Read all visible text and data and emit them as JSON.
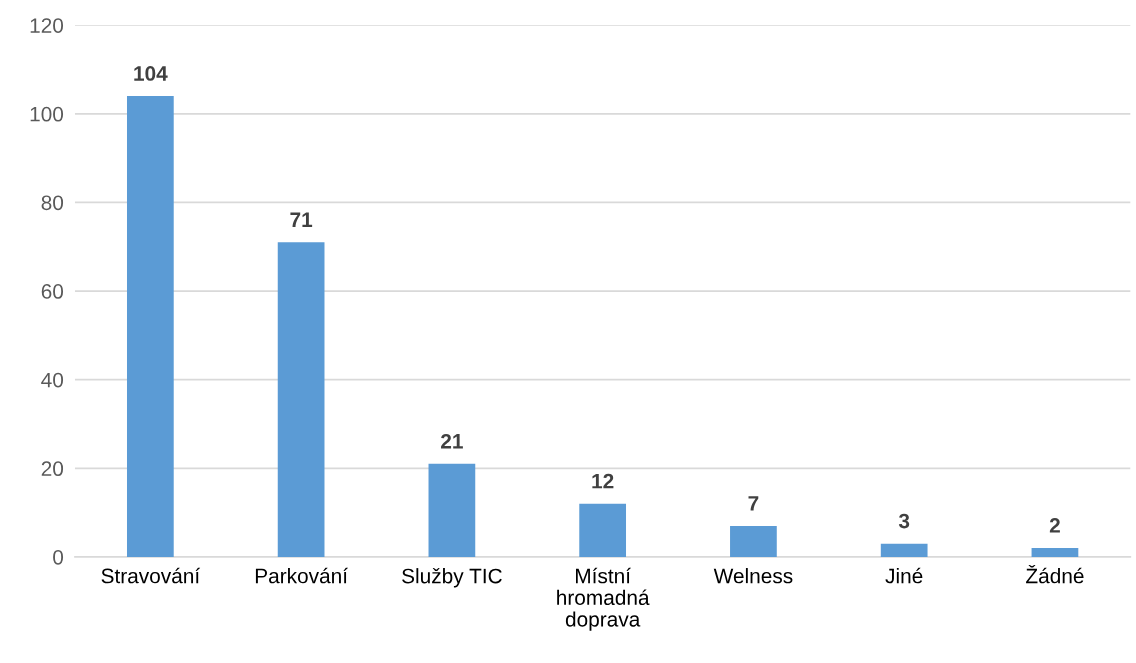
{
  "chart_data": {
    "type": "bar",
    "categories": [
      "Stravování",
      "Parkování",
      "Služby TIC",
      "Místní\nhromadná\ndoprava",
      "Welness",
      "Jiné",
      "Žádné"
    ],
    "values": [
      104,
      71,
      21,
      12,
      7,
      3,
      2
    ],
    "color": "#5b9bd5",
    "ylim": [
      0,
      120
    ],
    "yticks": [
      0,
      20,
      40,
      60,
      80,
      100,
      120
    ],
    "grid": "y",
    "data_labels": true,
    "legend": false
  }
}
